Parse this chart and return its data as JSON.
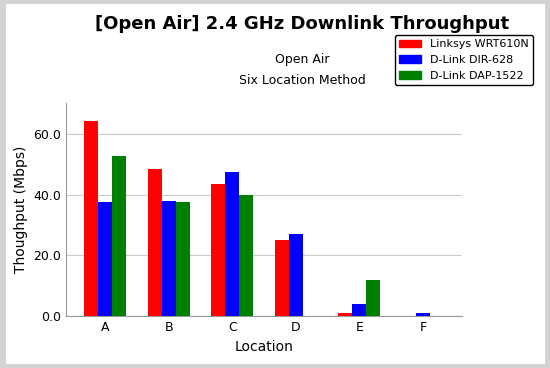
{
  "title": "[Open Air] 2.4 GHz Downlink Throughput",
  "subtitle1": "Open Air",
  "subtitle2": "Six Location Method",
  "xlabel": "Location",
  "ylabel": "Thoughput (Mbps)",
  "categories": [
    "A",
    "B",
    "C",
    "D",
    "E",
    "F"
  ],
  "series": [
    {
      "name": "Linksys WRT610N",
      "color": "#ff0000",
      "values": [
        64.0,
        48.5,
        43.5,
        25.0,
        1.0,
        0.0
      ]
    },
    {
      "name": "D-Link DIR-628",
      "color": "#0000ff",
      "values": [
        37.5,
        38.0,
        47.5,
        27.0,
        4.0,
        1.0
      ]
    },
    {
      "name": "D-Link DAP-1522",
      "color": "#008000",
      "values": [
        52.5,
        37.5,
        40.0,
        0.0,
        12.0,
        0.0
      ]
    }
  ],
  "ylim": [
    0,
    70
  ],
  "yticks": [
    0.0,
    20.0,
    40.0,
    60.0
  ],
  "bar_width": 0.22,
  "outer_bg_color": "#d3d3d3",
  "plot_bg_color": "#ffffff",
  "grid_color": "#cccccc",
  "title_fontsize": 13,
  "subtitle_fontsize": 9,
  "axis_label_fontsize": 10,
  "tick_fontsize": 9,
  "legend_fontsize": 8
}
